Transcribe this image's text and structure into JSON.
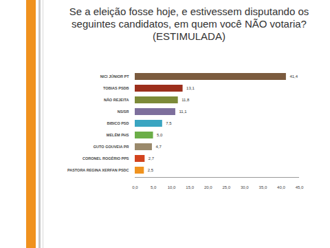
{
  "chart_data": {
    "type": "bar",
    "orientation": "horizontal",
    "title": "Se a eleição fosse hoje, e estivessem disputando os seguintes candidatos, em quem você NÃO votaria? (ESTIMULADA)",
    "categories": [
      "NICI JÚNIOR PT",
      "TOBIAS PSDB",
      "NÃO REJEITA",
      "NS/SR",
      "BIBICO PSD",
      "MELÉM PHS",
      "GUTO GOUVEIA PR",
      "CORONEL ROGÉRIO PPS",
      "PASTORA REGINA XERFAN PSDC"
    ],
    "values": [
      41.4,
      13.1,
      11.8,
      11.1,
      7.5,
      5.0,
      4.7,
      2.7,
      2.5
    ],
    "value_labels": [
      "41,4",
      "13,1",
      "11,8",
      "11,1",
      "7,5",
      "5,0",
      "4,7",
      "2,7",
      "2,5"
    ],
    "colors": [
      "#7b5b3e",
      "#9c2f1c",
      "#7c8a38",
      "#7d6f9c",
      "#3aa5c1",
      "#6cae48",
      "#9a896b",
      "#d2431e",
      "#f0931f"
    ],
    "xlim": [
      0,
      45
    ],
    "xticks": [
      {
        "value": 0,
        "label": "0,0"
      },
      {
        "value": 5,
        "label": "5,0"
      },
      {
        "value": 10,
        "label": "10,0"
      },
      {
        "value": 15,
        "label": "15,0"
      },
      {
        "value": 20,
        "label": "20,0"
      },
      {
        "value": 25,
        "label": "25,0"
      },
      {
        "value": 30,
        "label": "30,0"
      },
      {
        "value": 35,
        "label": "35,0"
      },
      {
        "value": 40,
        "label": "40,0"
      },
      {
        "value": 45,
        "label": "45,0"
      }
    ],
    "grid": false,
    "data_labels": true
  }
}
